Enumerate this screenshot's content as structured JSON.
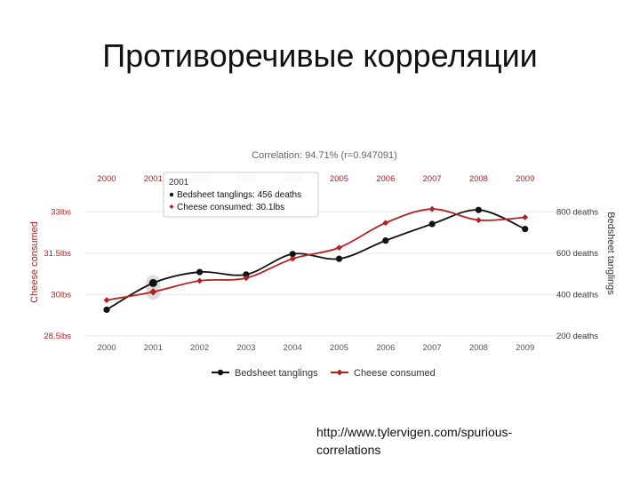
{
  "slide": {
    "title": "Противоречивые корреляции",
    "source_line1": "http://www.tylervigen.com/spurious-",
    "source_line2": "correlations"
  },
  "chart_data": {
    "type": "line",
    "title": "Correlation: 94.71% (r=0.947091)",
    "categories": [
      "2000",
      "2001",
      "2002",
      "2003",
      "2004",
      "2005",
      "2006",
      "2007",
      "2008",
      "2009"
    ],
    "series": [
      {
        "name": "Bedsheet tanglings",
        "axis": "right",
        "color": "#111111",
        "values": [
          327,
          456,
          509,
          497,
          596,
          573,
          661,
          741,
          809,
          717
        ]
      },
      {
        "name": "Cheese consumed",
        "axis": "left",
        "color": "#b22222",
        "values": [
          29.8,
          30.1,
          30.5,
          30.6,
          31.3,
          31.7,
          32.6,
          33.1,
          32.7,
          32.8
        ]
      }
    ],
    "y_left": {
      "label": "Cheese consumed",
      "range": [
        28.5,
        33.75
      ],
      "ticks": [
        28.5,
        30,
        31.5,
        33
      ],
      "tick_labels": [
        "28.5lbs",
        "30lbs",
        "31.5lbs",
        "33lbs"
      ]
    },
    "y_right": {
      "label": "Bedsheet tanglings",
      "range": [
        200,
        900
      ],
      "ticks": [
        200,
        400,
        600,
        800
      ],
      "tick_labels": [
        "200 deaths",
        "400 deaths",
        "600 deaths",
        "800 deaths"
      ]
    },
    "legend": {
      "placement": "bottom"
    },
    "grid": true,
    "tooltip": {
      "category_index": 1,
      "year": "2001",
      "line1": "Bedsheet tanglings: 456 deaths",
      "line2": "Cheese consumed: 30.1lbs"
    },
    "colors": {
      "left_axis": "#b22222",
      "grid": "#e6e6e6",
      "tick": "#555555"
    }
  }
}
